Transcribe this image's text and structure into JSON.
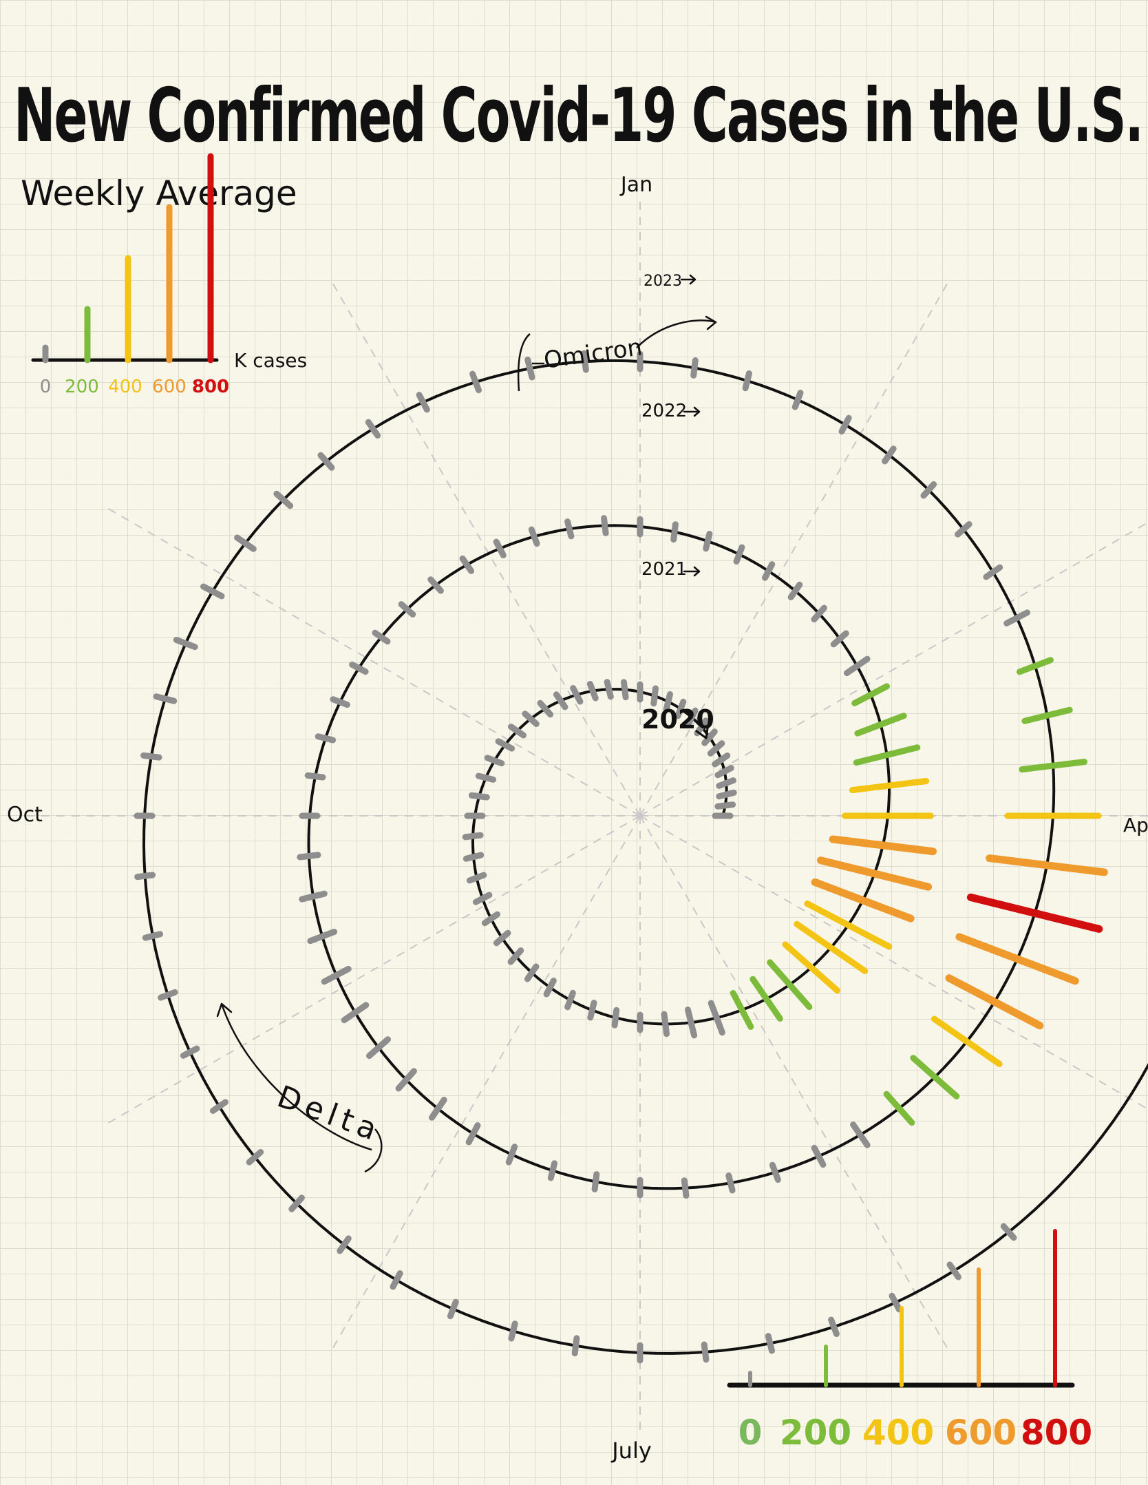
{
  "chart_data": {
    "type": "spiral-bar",
    "title": "New Confirmed Covid-19 Cases in the U.S.",
    "subtitle": "Weekly Average",
    "unit_label": "K cases",
    "months": [
      "Jan",
      "Apr",
      "July",
      "Oct"
    ],
    "year_labels": [
      "2020",
      "2021",
      "2022",
      "2023"
    ],
    "annotations": [
      "Omicron",
      "Delta"
    ],
    "legend": {
      "ticks": [
        {
          "value": 0,
          "label": "0",
          "color": "#8e8e8e"
        },
        {
          "value": 200,
          "label": "200",
          "color": "#7dbb3b"
        },
        {
          "value": 400,
          "label": "400",
          "color": "#f3c413"
        },
        {
          "value": 600,
          "label": "600",
          "color": "#ef9a2d"
        },
        {
          "value": 800,
          "label": "800",
          "color": "#d10f0f"
        }
      ]
    },
    "weekly_k_cases": [
      2,
      3,
      5,
      10,
      20,
      28,
      30,
      28,
      28,
      27,
      26,
      25,
      24,
      22,
      21,
      20,
      19,
      20,
      24,
      33,
      45,
      55,
      65,
      70,
      68,
      62,
      55,
      52,
      48,
      44,
      42,
      40,
      38,
      38,
      42,
      48,
      55,
      60,
      65,
      80,
      120,
      160,
      190,
      230,
      290,
      360,
      420,
      500,
      560,
      620,
      670,
      610,
      520,
      450,
      380,
      300,
      220,
      150,
      100,
      80,
      70,
      60,
      58,
      60,
      62,
      60,
      55,
      48,
      40,
      32,
      26,
      20,
      14,
      12,
      12,
      15,
      25,
      45,
      80,
      110,
      140,
      155,
      165,
      160,
      150,
      140,
      130,
      115,
      100,
      85,
      80,
      78,
      80,
      85,
      95,
      115,
      150,
      230,
      350,
      480,
      620,
      750,
      800,
      700,
      550,
      380,
      280,
      200,
      140,
      100,
      60,
      40,
      32,
      32,
      35,
      45,
      60,
      80,
      100,
      110,
      105,
      100,
      98,
      100,
      110,
      120,
      125,
      120,
      110,
      95,
      80,
      70,
      60,
      55,
      50,
      45,
      40,
      38,
      36,
      40,
      42,
      44,
      45,
      44,
      45,
      46,
      47,
      48,
      50,
      48
    ]
  }
}
